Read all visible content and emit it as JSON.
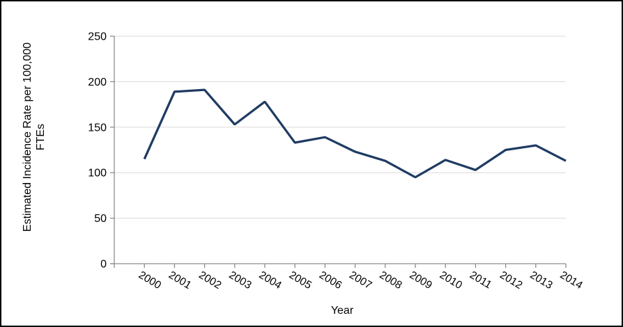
{
  "chart_data": {
    "type": "line",
    "title": "",
    "xlabel": "Year",
    "ylabel": "Estimated Incidence Rate per 100,000 FTEs",
    "ylabel_lines": [
      "Estimated Incidence Rate per 100,000",
      "FTEs"
    ],
    "categories": [
      "2000",
      "2001",
      "2002",
      "2003",
      "2004",
      "2005",
      "2006",
      "2007",
      "2008",
      "2009",
      "2010",
      "2011",
      "2012",
      "2013",
      "2014"
    ],
    "values": [
      115,
      189,
      191,
      153,
      178,
      133,
      139,
      123,
      113,
      95,
      114,
      103,
      125,
      130,
      113
    ],
    "ylim": [
      0,
      250
    ],
    "yticks": [
      0,
      50,
      100,
      150,
      200,
      250
    ],
    "grid": "horizontal",
    "legend": "none",
    "line_color": "#1F3B63",
    "axis_color": "#8C8C8C",
    "gridline_color": "#D9D9D9",
    "text_color": "#000000"
  }
}
